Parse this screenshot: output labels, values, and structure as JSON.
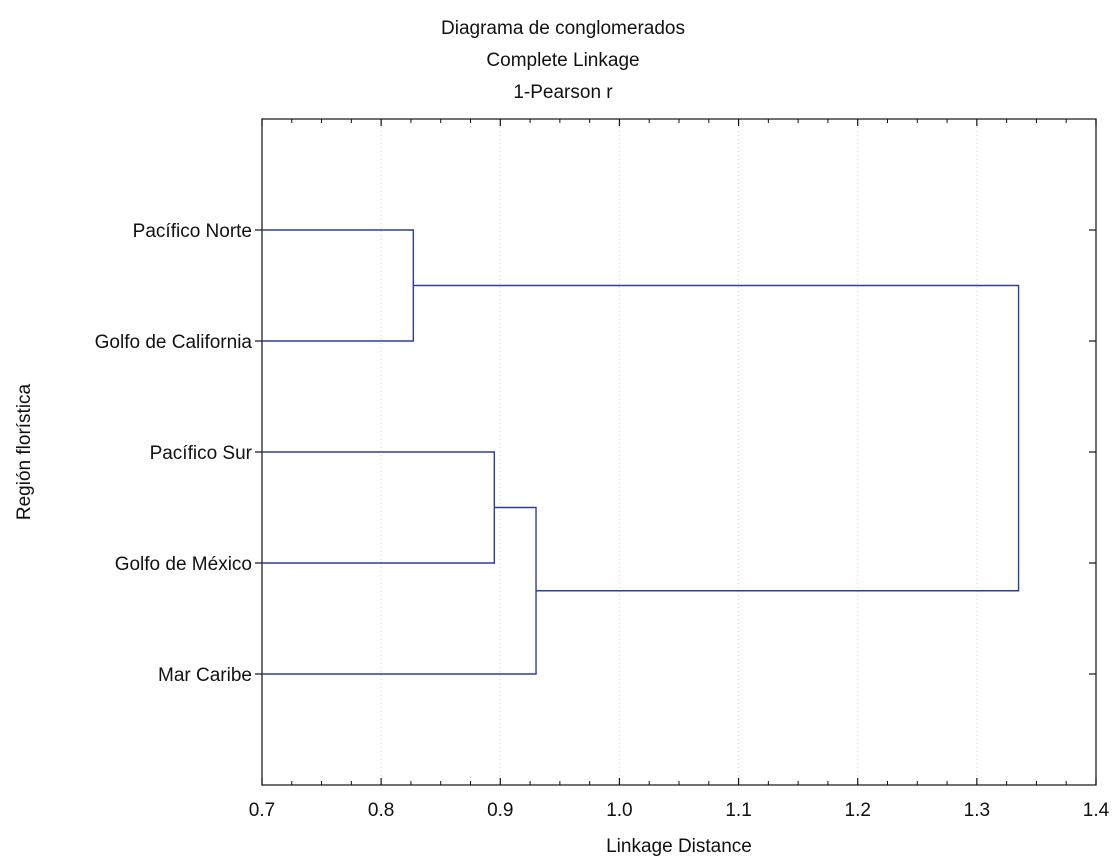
{
  "chart_data": {
    "type": "dendrogram",
    "title": [
      "Diagrama de conglomerados",
      "Complete Linkage",
      "1-Pearson r"
    ],
    "xlabel": "Linkage Distance",
    "ylabel": "Región florística",
    "xlim": [
      0.7,
      1.4
    ],
    "xticks": [
      "0.7",
      "0.8",
      "0.9",
      "1.0",
      "1.1",
      "1.2",
      "1.3",
      "1.4"
    ],
    "grid": "vertical dotted",
    "leaves": [
      "Pacífico Norte",
      "Golfo de California",
      "Pacífico Sur",
      "Golfo de México",
      "Mar Caribe"
    ],
    "merges": [
      {
        "left": "Pacífico Norte",
        "right": "Golfo de California",
        "distance": 0.827
      },
      {
        "left": "Pacífico Sur",
        "right": "Golfo de México",
        "distance": 0.895
      },
      {
        "left": "cluster:Pacífico Sur+Golfo de México",
        "right": "Mar Caribe",
        "distance": 0.93
      },
      {
        "left": "cluster:Pacífico Norte+Golfo de California",
        "right": "cluster:Pacífico Sur+Golfo de México+Mar Caribe",
        "distance": 1.335
      }
    ],
    "line_color": "#2b3f99"
  }
}
